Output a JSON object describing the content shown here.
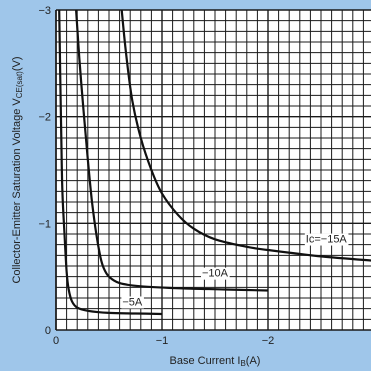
{
  "chart_data": {
    "type": "line",
    "xlabel": "Base Current I",
    "xlabel_sub": "B",
    "xlabel_unit": "(A)",
    "ylabel": "Collector-Emitter Saturation Voltage V",
    "ylabel_sub": "CE(sat)",
    "ylabel_unit": "(V)",
    "xlim": [
      0,
      -3
    ],
    "ylim": [
      0,
      -3
    ],
    "x_ticks": [
      {
        "value": 0,
        "label": "0"
      },
      {
        "value": -1,
        "label": "−1"
      },
      {
        "value": -2,
        "label": "−2"
      },
      {
        "value": -3,
        "label": "−"
      }
    ],
    "y_ticks": [
      {
        "value": 0,
        "label": "0"
      },
      {
        "value": -1,
        "label": "−1"
      },
      {
        "value": -2,
        "label": "−2"
      },
      {
        "value": -3,
        "label": "−3"
      }
    ],
    "grid": true,
    "series": [
      {
        "name": "−5A",
        "x": [
          -0.03,
          -0.04,
          -0.05,
          -0.06,
          -0.08,
          -0.1,
          -0.12,
          -0.15,
          -0.2,
          -0.3,
          -0.5,
          -0.75,
          -1.0
        ],
        "y": [
          -3.0,
          -2.4,
          -1.8,
          -1.3,
          -0.9,
          -0.55,
          -0.38,
          -0.27,
          -0.21,
          -0.18,
          -0.16,
          -0.155,
          -0.15
        ]
      },
      {
        "name": "−10A",
        "x": [
          -0.19,
          -0.22,
          -0.26,
          -0.3,
          -0.34,
          -0.38,
          -0.42,
          -0.45,
          -0.5,
          -0.6,
          -0.8,
          -1.2,
          -1.6,
          -2.0
        ],
        "y": [
          -3.0,
          -2.55,
          -2.05,
          -1.6,
          -1.2,
          -0.9,
          -0.68,
          -0.58,
          -0.5,
          -0.44,
          -0.41,
          -0.39,
          -0.38,
          -0.37
        ]
      },
      {
        "name": "Ic=−15A",
        "x": [
          -0.62,
          -0.66,
          -0.72,
          -0.8,
          -0.9,
          -1.0,
          -1.15,
          -1.3,
          -1.5,
          -1.8,
          -2.0,
          -2.5,
          -3.0
        ],
        "y": [
          -3.0,
          -2.6,
          -2.15,
          -1.8,
          -1.5,
          -1.28,
          -1.08,
          -0.95,
          -0.85,
          -0.78,
          -0.75,
          -0.69,
          -0.65
        ]
      }
    ],
    "curve_labels": [
      {
        "text": "−5A",
        "x": -0.72,
        "y": -0.23
      },
      {
        "text": "−10A",
        "x": -1.5,
        "y": -0.5
      },
      {
        "text": "Ic=−15A",
        "x": -2.55,
        "y": -0.82
      }
    ]
  },
  "colors": {
    "background": "#9fc6ea",
    "plot_area": "#ffffff",
    "grid": "#1a1a1a",
    "curve": "#111111",
    "text": "#222222"
  }
}
